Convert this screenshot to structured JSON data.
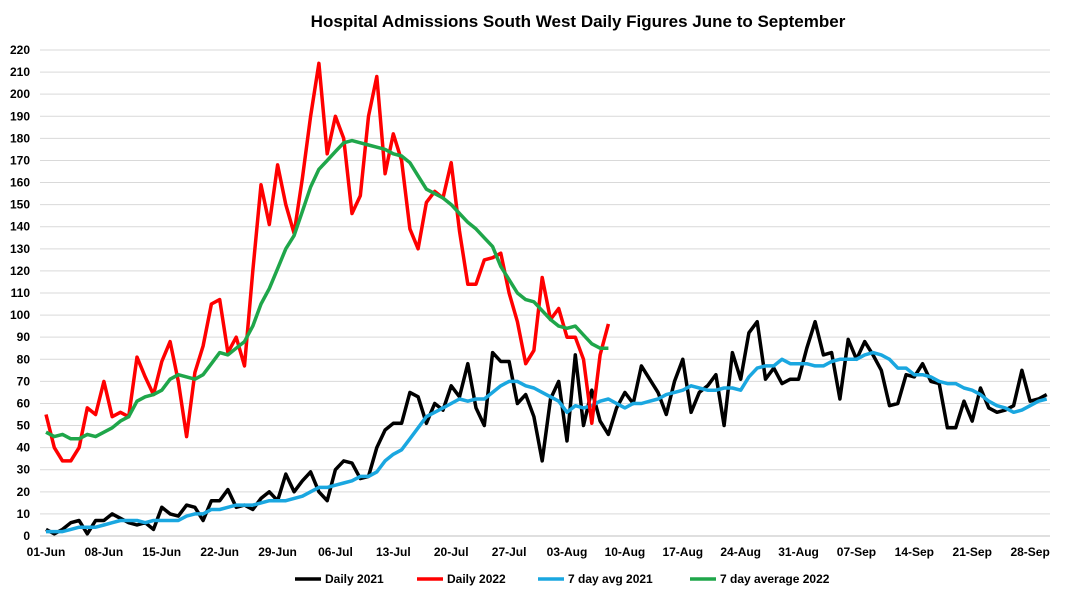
{
  "chart_data": {
    "type": "line",
    "title": "Hospital Admissions South West Daily Figures June to September",
    "xlabel": "",
    "ylabel": "",
    "ylim": [
      0,
      220
    ],
    "ytick_step": 10,
    "grid": true,
    "legend_placement": "bottom",
    "x_start": "01-Jun",
    "x_ticks": [
      "01-Jun",
      "08-Jun",
      "15-Jun",
      "22-Jun",
      "29-Jun",
      "06-Jul",
      "13-Jul",
      "20-Jul",
      "27-Jul",
      "03-Aug",
      "10-Aug",
      "17-Aug",
      "24-Aug",
      "31-Aug",
      "07-Sep",
      "14-Sep",
      "21-Sep",
      "28-Sep"
    ],
    "series": [
      {
        "name": "Daily 2021",
        "color": "#000000",
        "values": [
          3,
          1,
          3,
          6,
          7,
          1,
          7,
          7,
          10,
          8,
          6,
          5,
          6,
          3,
          13,
          10,
          9,
          14,
          13,
          7,
          16,
          16,
          21,
          13,
          14,
          12,
          17,
          20,
          16,
          28,
          20,
          25,
          29,
          20,
          16,
          30,
          34,
          33,
          26,
          27,
          40,
          48,
          51,
          51,
          65,
          63,
          51,
          60,
          57,
          68,
          63,
          78,
          58,
          50,
          83,
          79,
          79,
          60,
          64,
          54,
          34,
          62,
          70,
          43,
          82,
          50,
          66,
          52,
          46,
          58,
          65,
          60,
          77,
          71,
          65,
          55,
          70,
          80,
          56,
          65,
          68,
          73,
          50,
          83,
          71,
          92,
          97,
          71,
          76,
          69,
          71,
          71,
          85,
          97,
          82,
          83,
          62,
          89,
          80,
          88,
          82,
          75,
          59,
          60,
          73,
          72,
          78,
          70,
          69,
          49,
          49,
          61,
          52,
          67,
          58,
          56,
          57,
          59,
          75,
          61,
          62,
          64
        ]
      },
      {
        "name": "Daily 2022",
        "color": "#ff0000",
        "values": [
          55,
          40,
          34,
          34,
          40,
          58,
          55,
          70,
          54,
          56,
          54,
          81,
          72,
          64,
          79,
          88,
          70,
          45,
          74,
          86,
          105,
          107,
          83,
          90,
          77,
          120,
          159,
          141,
          168,
          150,
          137,
          162,
          190,
          214,
          173,
          190,
          180,
          146,
          154,
          190,
          208,
          164,
          182,
          170,
          139,
          130,
          151,
          156,
          153,
          169,
          138,
          114,
          114,
          125,
          126,
          128,
          110,
          97,
          78,
          84,
          117,
          98,
          103,
          90,
          90,
          80,
          51,
          82,
          96
        ]
      },
      {
        "name": "7 day avg 2021",
        "color": "#1aa7e0",
        "values": [
          2,
          2,
          2,
          3,
          4,
          4,
          4,
          5,
          6,
          7,
          7,
          7,
          6,
          7,
          7,
          7,
          7,
          9,
          10,
          10,
          12,
          12,
          13,
          14,
          14,
          14,
          15,
          16,
          16,
          16,
          17,
          18,
          20,
          22,
          22,
          23,
          24,
          25,
          27,
          27,
          29,
          34,
          37,
          39,
          44,
          49,
          54,
          56,
          58,
          60,
          62,
          61,
          62,
          62,
          65,
          68,
          70,
          70,
          68,
          67,
          65,
          63,
          61,
          56,
          59,
          58,
          59,
          61,
          62,
          60,
          58,
          60,
          60,
          61,
          62,
          64,
          65,
          66,
          68,
          67,
          66,
          66,
          67,
          67,
          66,
          72,
          76,
          77,
          77,
          80,
          78,
          78,
          78,
          77,
          77,
          79,
          80,
          80,
          80,
          82,
          83,
          82,
          80,
          76,
          76,
          73,
          73,
          72,
          70,
          69,
          69,
          67,
          66,
          64,
          61,
          59,
          58,
          56,
          57,
          59,
          61,
          62
        ]
      },
      {
        "name": "7 day average 2022",
        "color": "#1fa64a",
        "values": [
          47,
          45,
          46,
          44,
          44,
          46,
          45,
          47,
          49,
          52,
          54,
          61,
          63,
          64,
          66,
          71,
          73,
          72,
          71,
          73,
          78,
          83,
          82,
          85,
          88,
          95,
          105,
          112,
          121,
          130,
          136,
          147,
          158,
          166,
          170,
          174,
          178,
          179,
          178,
          177,
          176,
          175,
          173,
          172,
          169,
          163,
          157,
          155,
          153,
          150,
          146,
          142,
          139,
          135,
          131,
          122,
          116,
          110,
          107,
          106,
          102,
          98,
          95,
          94,
          95,
          91,
          87,
          85,
          85
        ]
      }
    ]
  }
}
